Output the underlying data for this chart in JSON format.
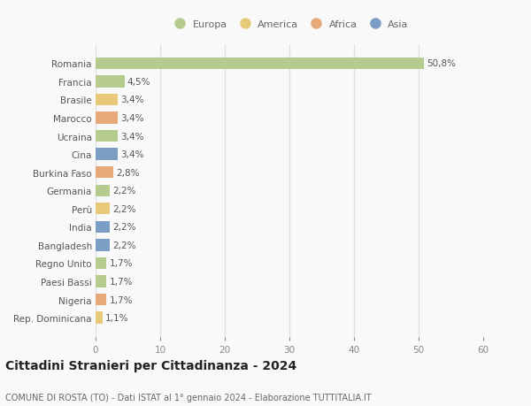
{
  "countries": [
    "Romania",
    "Francia",
    "Brasile",
    "Marocco",
    "Ucraina",
    "Cina",
    "Burkina Faso",
    "Germania",
    "Perù",
    "India",
    "Bangladesh",
    "Regno Unito",
    "Paesi Bassi",
    "Nigeria",
    "Rep. Dominicana"
  ],
  "values": [
    50.8,
    4.5,
    3.4,
    3.4,
    3.4,
    3.4,
    2.8,
    2.2,
    2.2,
    2.2,
    2.2,
    1.7,
    1.7,
    1.7,
    1.1
  ],
  "labels": [
    "50,8%",
    "4,5%",
    "3,4%",
    "3,4%",
    "3,4%",
    "3,4%",
    "2,8%",
    "2,2%",
    "2,2%",
    "2,2%",
    "2,2%",
    "1,7%",
    "1,7%",
    "1,7%",
    "1,1%"
  ],
  "continents": [
    "Europa",
    "Europa",
    "America",
    "Africa",
    "Europa",
    "Asia",
    "Africa",
    "Europa",
    "America",
    "Asia",
    "Asia",
    "Europa",
    "Europa",
    "Africa",
    "America"
  ],
  "colors": {
    "Europa": "#b5cc8e",
    "America": "#e8c97a",
    "Africa": "#e8a97a",
    "Asia": "#7a9ec4"
  },
  "xlim": [
    0,
    60
  ],
  "xticks": [
    0,
    10,
    20,
    30,
    40,
    50,
    60
  ],
  "title": "Cittadini Stranieri per Cittadinanza - 2024",
  "subtitle": "COMUNE DI ROSTA (TO) - Dati ISTAT al 1° gennaio 2024 - Elaborazione TUTTITALIA.IT",
  "background_color": "#f9f9f9",
  "grid_color": "#e0e0e0",
  "bar_height": 0.65,
  "label_fontsize": 7.5,
  "tick_fontsize": 7.5,
  "title_fontsize": 10,
  "subtitle_fontsize": 7,
  "legend_order": [
    "Europa",
    "America",
    "Africa",
    "Asia"
  ]
}
